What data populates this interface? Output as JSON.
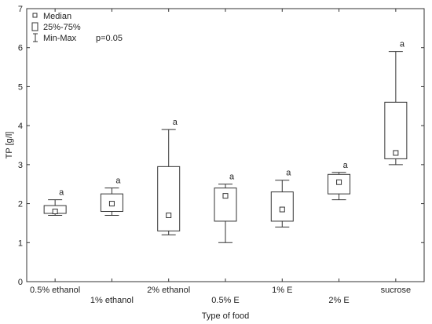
{
  "chart_data": {
    "type": "boxplot",
    "xlabel": "Type of food",
    "ylabel": "TP [g/l]",
    "ylim": [
      0,
      7
    ],
    "yticks": [
      0,
      1,
      2,
      3,
      4,
      5,
      6,
      7
    ],
    "grid": false,
    "legend": {
      "position": "top-left",
      "items": [
        {
          "symbol": "median",
          "label": "Median"
        },
        {
          "symbol": "box",
          "label": "25%-75%"
        },
        {
          "symbol": "whisker",
          "label": "Min-Max"
        }
      ]
    },
    "annotation": "p=0.05",
    "categories": [
      "0.5% ethanol",
      "1% ethanol",
      "2% ethanol",
      "0.5% E",
      "1% E",
      "2% E",
      "sucrose"
    ],
    "label_row": [
      "upper",
      "lower",
      "upper",
      "lower",
      "upper",
      "lower",
      "upper"
    ],
    "boxes": [
      {
        "min": 1.7,
        "q1": 1.75,
        "median": 1.8,
        "q3": 1.95,
        "max": 2.1,
        "label": "a"
      },
      {
        "min": 1.7,
        "q1": 1.8,
        "median": 2.0,
        "q3": 2.25,
        "max": 2.4,
        "label": "a"
      },
      {
        "min": 1.2,
        "q1": 1.3,
        "median": 1.7,
        "q3": 2.95,
        "max": 3.9,
        "label": "a"
      },
      {
        "min": 1.0,
        "q1": 1.55,
        "median": 2.2,
        "q3": 2.4,
        "max": 2.5,
        "label": "a"
      },
      {
        "min": 1.4,
        "q1": 1.55,
        "median": 1.85,
        "q3": 2.3,
        "max": 2.6,
        "label": "a"
      },
      {
        "min": 2.1,
        "q1": 2.25,
        "median": 2.55,
        "q3": 2.75,
        "max": 2.8,
        "label": "a"
      },
      {
        "min": 3.0,
        "q1": 3.15,
        "median": 3.3,
        "q3": 4.6,
        "max": 5.9,
        "label": "a"
      }
    ]
  }
}
